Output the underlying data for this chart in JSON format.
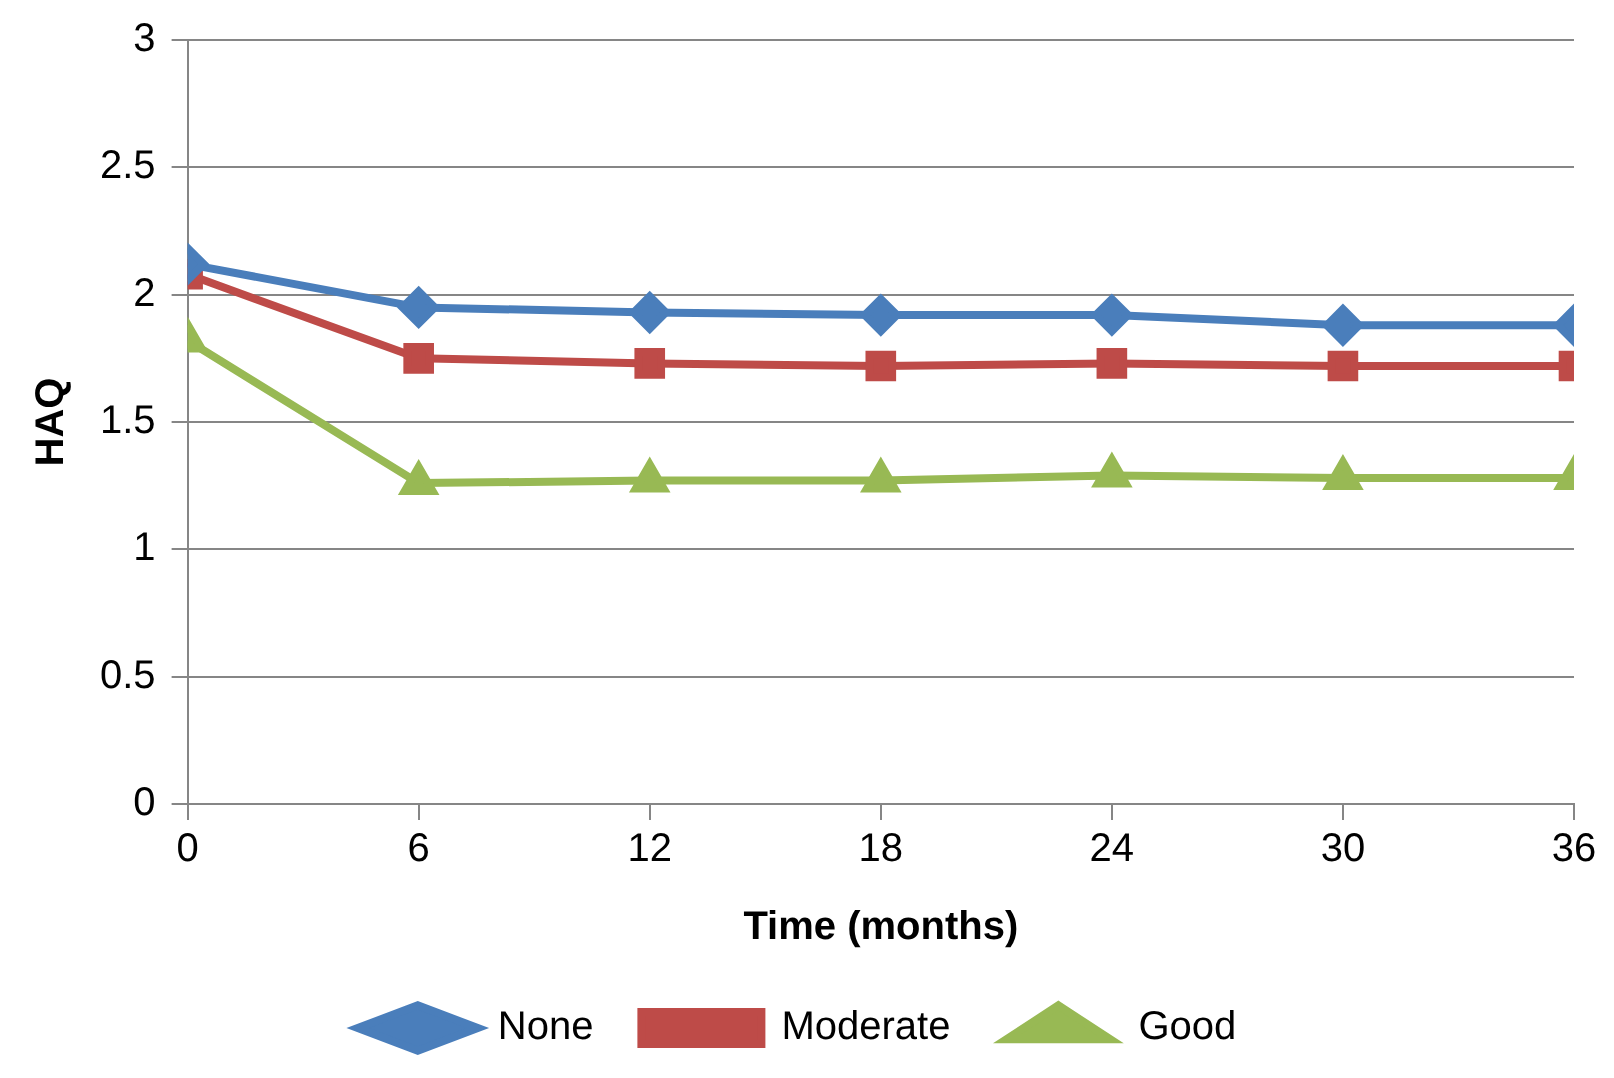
{
  "chart_data": {
    "type": "line",
    "xlabel": "Time (months)",
    "ylabel": "HAQ",
    "x": [
      0,
      6,
      12,
      18,
      24,
      30,
      36
    ],
    "series": [
      {
        "name": "None",
        "color": "#4a7ebb",
        "marker": "diamond",
        "values": [
          2.12,
          1.95,
          1.93,
          1.92,
          1.92,
          1.88,
          1.88
        ]
      },
      {
        "name": "Moderate",
        "color": "#be4b48",
        "marker": "square",
        "values": [
          2.08,
          1.75,
          1.73,
          1.72,
          1.73,
          1.72,
          1.72
        ]
      },
      {
        "name": "Good",
        "color": "#98b954",
        "marker": "triangle",
        "values": [
          1.82,
          1.26,
          1.27,
          1.27,
          1.29,
          1.28,
          1.28
        ]
      }
    ],
    "xlim": [
      0,
      36
    ],
    "xticks": [
      0,
      6,
      12,
      18,
      24,
      30,
      36
    ],
    "ylim": [
      0,
      3
    ],
    "yticks": [
      0,
      0.5,
      1,
      1.5,
      2,
      2.5,
      3
    ],
    "grid": "y",
    "legend": "bottom",
    "line_style": "solid"
  }
}
